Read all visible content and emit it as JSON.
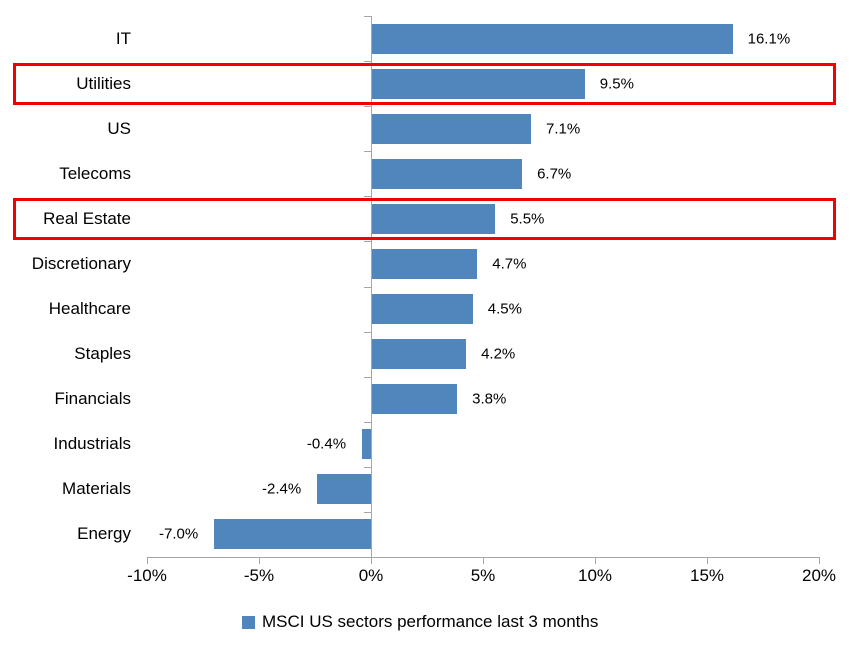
{
  "chart_data": {
    "type": "bar",
    "orientation": "horizontal",
    "title": "",
    "xlabel": "",
    "ylabel": "",
    "categories": [
      "IT",
      "Utilities",
      "US",
      "Telecoms",
      "Real Estate",
      "Discretionary",
      "Healthcare",
      "Staples",
      "Financials",
      "Industrials",
      "Materials",
      "Energy"
    ],
    "values": [
      16.1,
      9.5,
      7.1,
      6.7,
      5.5,
      4.7,
      4.5,
      4.2,
      3.8,
      -0.4,
      -2.4,
      -7.0
    ],
    "value_labels": [
      "16.1%",
      "9.5%",
      "7.1%",
      "6.7%",
      "5.5%",
      "4.7%",
      "4.5%",
      "4.2%",
      "3.8%",
      "-0.4%",
      "-2.4%",
      "-7.0%"
    ],
    "xlim": [
      -10,
      20
    ],
    "x_ticks": [
      -10,
      -5,
      0,
      5,
      10,
      15,
      20
    ],
    "x_tick_labels": [
      "-10%",
      "-5%",
      "0%",
      "5%",
      "10%",
      "15%",
      "20%"
    ],
    "grid": false,
    "legend_position": "bottom",
    "legend_entries": [
      "MSCI US sectors performance last 3 months"
    ],
    "highlighted_categories": [
      "Utilities",
      "Real Estate"
    ],
    "data_labels_shown": true
  },
  "legend": {
    "label": "MSCI US sectors performance last 3 months"
  },
  "colors": {
    "bar": "#5086BC",
    "axis": "#A6A6A6",
    "highlight_border": "#F40000",
    "text": "#000000"
  }
}
